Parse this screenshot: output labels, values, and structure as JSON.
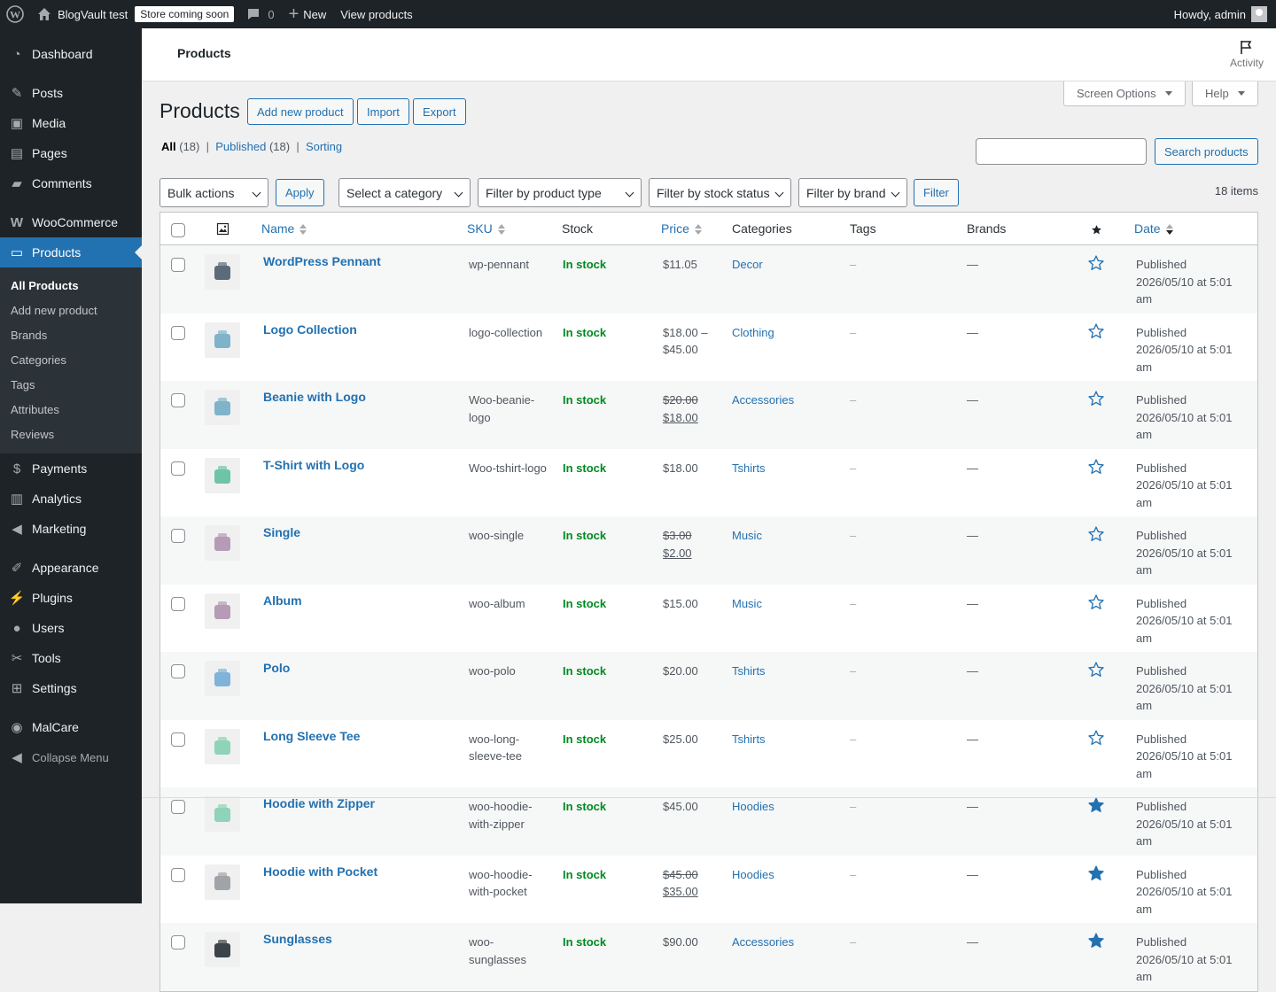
{
  "adminbar": {
    "site_name": "BlogVault test",
    "store_badge": "Store coming soon",
    "comments_count": "0",
    "new_label": "New",
    "view_products": "View products",
    "howdy": "Howdy, admin"
  },
  "sidebar": {
    "dashboard": "Dashboard",
    "posts": "Posts",
    "media": "Media",
    "pages": "Pages",
    "comments": "Comments",
    "woocommerce": "WooCommerce",
    "products": "Products",
    "submenu": [
      "All Products",
      "Add new product",
      "Brands",
      "Categories",
      "Tags",
      "Attributes",
      "Reviews"
    ],
    "payments": "Payments",
    "analytics": "Analytics",
    "marketing": "Marketing",
    "appearance": "Appearance",
    "plugins": "Plugins",
    "users": "Users",
    "tools": "Tools",
    "settings": "Settings",
    "malcare": "MalCare",
    "collapse": "Collapse Menu"
  },
  "header": {
    "title": "Products",
    "activity": "Activity",
    "screen_options": "Screen Options",
    "help": "Help"
  },
  "page": {
    "title": "Products",
    "add_new": "Add new product",
    "import": "Import",
    "export": "Export",
    "views": {
      "all": "All",
      "all_count": "(18)",
      "published": "Published",
      "published_count": "(18)",
      "sorting": "Sorting"
    },
    "search_button": "Search products",
    "bulk_actions": "Bulk actions",
    "apply": "Apply",
    "category": "Select a category",
    "product_type": "Filter by product type",
    "stock_status": "Filter by stock status",
    "brand": "Filter by brand",
    "filter": "Filter",
    "items_count": "18 items"
  },
  "table": {
    "columns": {
      "name": "Name",
      "sku": "SKU",
      "stock": "Stock",
      "price": "Price",
      "categories": "Categories",
      "tags": "Tags",
      "brands": "Brands",
      "date": "Date"
    },
    "rows": [
      {
        "name": "WordPress Pennant",
        "sku": "wp-pennant",
        "stock": "In stock",
        "price": "$11.05",
        "price_old": "",
        "price_new": "",
        "category": "Decor",
        "tags": "–",
        "brands": "—",
        "featured": false,
        "date_status": "Published",
        "date": "2026/05/10 at 5:01 am",
        "thumb": "pennant"
      },
      {
        "name": "Logo Collection",
        "sku": "logo-collection",
        "stock": "In stock",
        "price": "$18.00 – $45.00",
        "price_old": "",
        "price_new": "",
        "category": "Clothing",
        "tags": "–",
        "brands": "—",
        "featured": false,
        "date_status": "Published",
        "date": "2026/05/10 at 5:01 am",
        "thumb": "collection"
      },
      {
        "name": "Beanie with Logo",
        "sku": "Woo-beanie-logo",
        "stock": "In stock",
        "price": "",
        "price_old": "$20.00",
        "price_new": "$18.00",
        "category": "Accessories",
        "tags": "–",
        "brands": "—",
        "featured": false,
        "date_status": "Published",
        "date": "2026/05/10 at 5:01 am",
        "thumb": "beanie"
      },
      {
        "name": "T-Shirt with Logo",
        "sku": "Woo-tshirt-logo",
        "stock": "In stock",
        "price": "$18.00",
        "price_old": "",
        "price_new": "",
        "category": "Tshirts",
        "tags": "–",
        "brands": "—",
        "featured": false,
        "date_status": "Published",
        "date": "2026/05/10 at 5:01 am",
        "thumb": "tshirt"
      },
      {
        "name": "Single",
        "sku": "woo-single",
        "stock": "In stock",
        "price": "",
        "price_old": "$3.00",
        "price_new": "$2.00",
        "category": "Music",
        "tags": "–",
        "brands": "—",
        "featured": false,
        "date_status": "Published",
        "date": "2026/05/10 at 5:01 am",
        "thumb": "single"
      },
      {
        "name": "Album",
        "sku": "woo-album",
        "stock": "In stock",
        "price": "$15.00",
        "price_old": "",
        "price_new": "",
        "category": "Music",
        "tags": "–",
        "brands": "—",
        "featured": false,
        "date_status": "Published",
        "date": "2026/05/10 at 5:01 am",
        "thumb": "album"
      },
      {
        "name": "Polo",
        "sku": "woo-polo",
        "stock": "In stock",
        "price": "$20.00",
        "price_old": "",
        "price_new": "",
        "category": "Tshirts",
        "tags": "–",
        "brands": "—",
        "featured": false,
        "date_status": "Published",
        "date": "2026/05/10 at 5:01 am",
        "thumb": "polo"
      },
      {
        "name": "Long Sleeve Tee",
        "sku": "woo-long-sleeve-tee",
        "stock": "In stock",
        "price": "$25.00",
        "price_old": "",
        "price_new": "",
        "category": "Tshirts",
        "tags": "–",
        "brands": "—",
        "featured": false,
        "date_status": "Published",
        "date": "2026/05/10 at 5:01 am",
        "thumb": "longsleeve"
      },
      {
        "name": "Hoodie with Zipper",
        "sku": "woo-hoodie-with-zipper",
        "stock": "In stock",
        "price": "$45.00",
        "price_old": "",
        "price_new": "",
        "category": "Hoodies",
        "tags": "–",
        "brands": "—",
        "featured": true,
        "date_status": "Published",
        "date": "2026/05/10 at 5:01 am",
        "thumb": "hoodie-zip"
      },
      {
        "name": "Hoodie with Pocket",
        "sku": "woo-hoodie-with-pocket",
        "stock": "In stock",
        "price": "",
        "price_old": "$45.00",
        "price_new": "$35.00",
        "category": "Hoodies",
        "tags": "–",
        "brands": "—",
        "featured": true,
        "date_status": "Published",
        "date": "2026/05/10 at 5:01 am",
        "thumb": "hoodie-pocket"
      },
      {
        "name": "Sunglasses",
        "sku": "woo-sunglasses",
        "stock": "In stock",
        "price": "$90.00",
        "price_old": "",
        "price_new": "",
        "category": "Accessories",
        "tags": "–",
        "brands": "—",
        "featured": true,
        "date_status": "Published",
        "date": "2026/05/10 at 5:01 am",
        "thumb": "sunglasses"
      }
    ]
  },
  "colors": {
    "accent": "#2271b1",
    "sidebar": "#1d2327",
    "in_stock": "#008a20"
  }
}
